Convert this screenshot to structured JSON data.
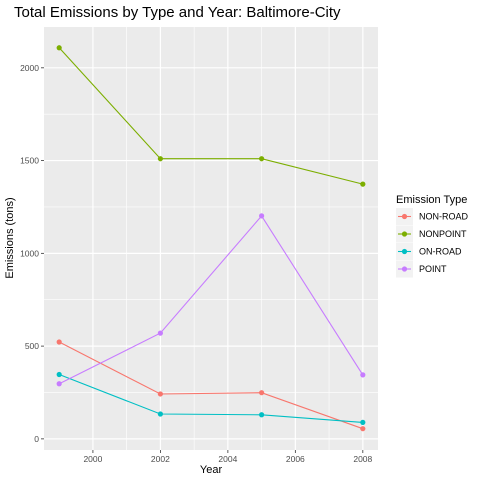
{
  "chart_data": {
    "type": "line",
    "title": "Total Emissions by Type and Year: Baltimore-City",
    "xlabel": "Year",
    "ylabel": "Emissions (tons)",
    "x": [
      1999,
      2002,
      2005,
      2008
    ],
    "xlim": [
      1998.55,
      2008.45
    ],
    "ylim": [
      -60,
      2220
    ],
    "x_ticks": [
      2000,
      2002,
      2004,
      2006,
      2008
    ],
    "y_ticks": [
      0,
      500,
      1000,
      1500,
      2000
    ],
    "grid": true,
    "legend": {
      "title": "Emission Type",
      "position": "right"
    },
    "series": [
      {
        "name": "NON-ROAD",
        "color": "#F8766D",
        "values": [
          522,
          242,
          249,
          55
        ]
      },
      {
        "name": "NONPOINT",
        "color": "#7CAE00",
        "values": [
          2108,
          1510,
          1510,
          1373
        ]
      },
      {
        "name": "ON-ROAD",
        "color": "#00BFC4",
        "values": [
          347,
          134,
          130,
          89
        ]
      },
      {
        "name": "POINT",
        "color": "#C77CFF",
        "values": [
          297,
          570,
          1202,
          345
        ]
      }
    ]
  }
}
